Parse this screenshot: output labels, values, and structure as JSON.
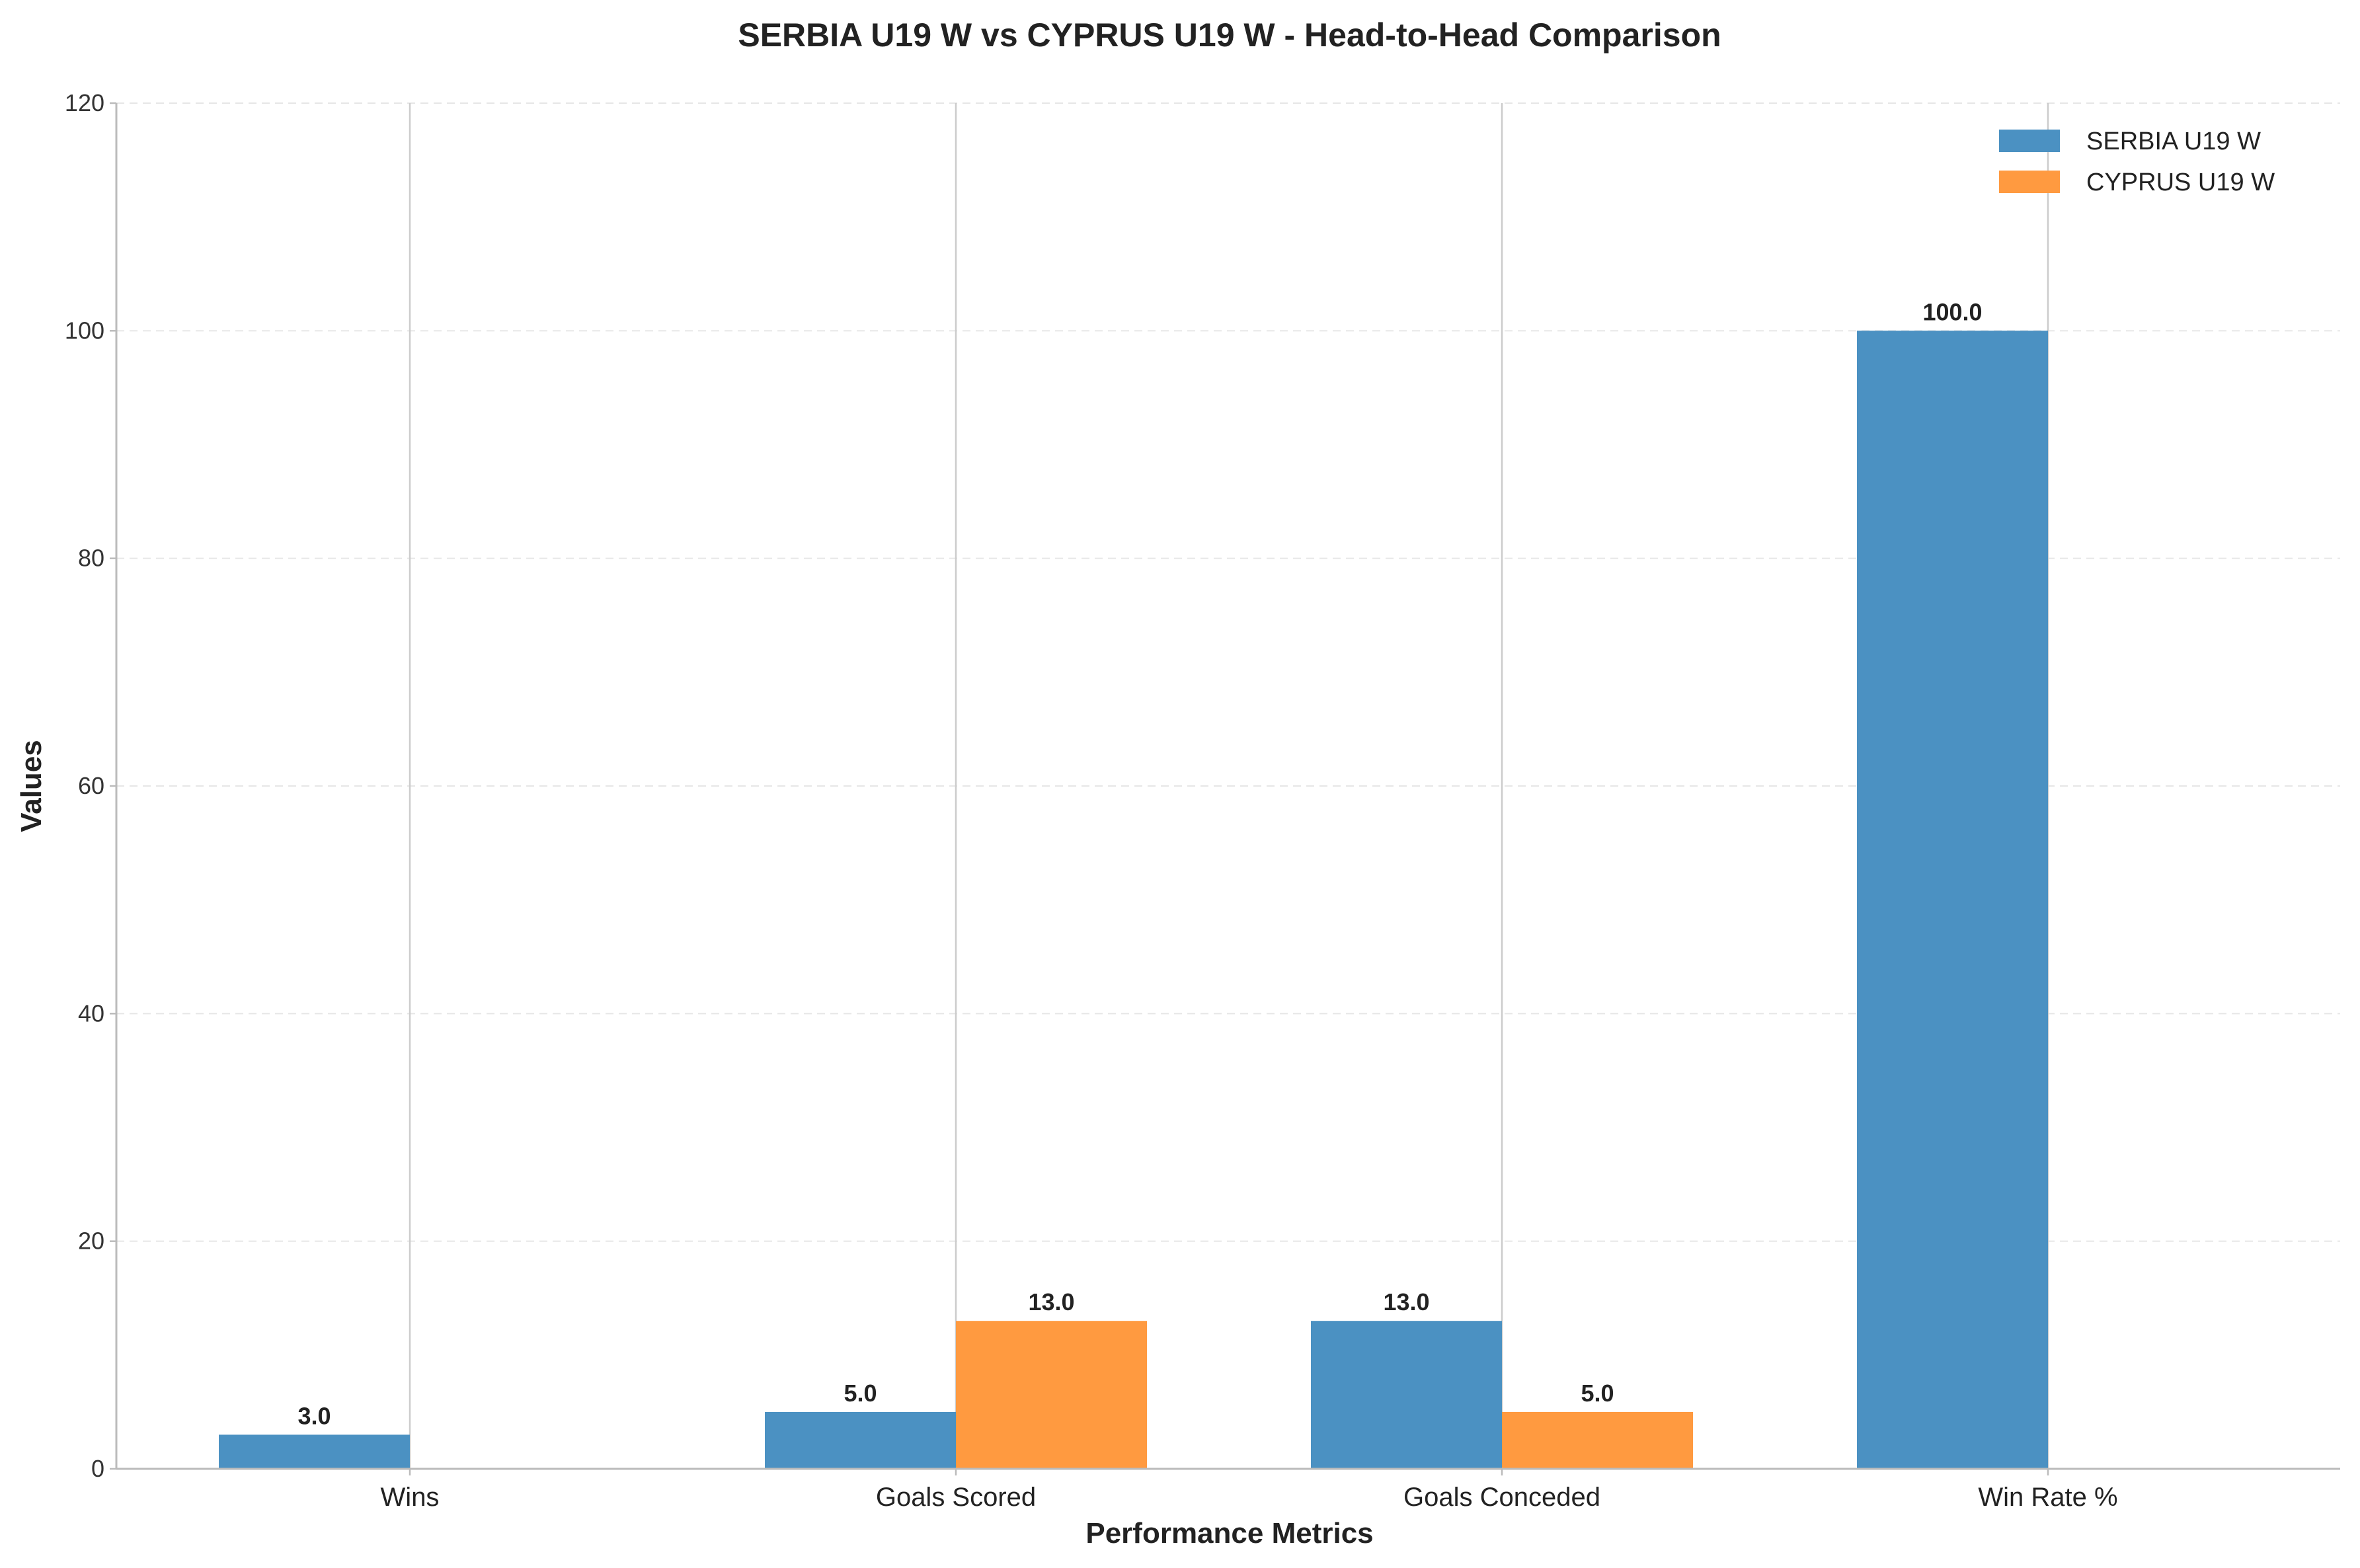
{
  "chart_data": {
    "type": "bar",
    "title": "SERBIA U19 W vs CYPRUS U19 W - Head-to-Head Comparison",
    "xlabel": "Performance Metrics",
    "ylabel": "Values",
    "categories": [
      "Wins",
      "Goals Scored",
      "Goals Conceded",
      "Win Rate %"
    ],
    "series": [
      {
        "name": "SERBIA U19 W",
        "color": "#4b91c2",
        "values": [
          3.0,
          5.0,
          13.0,
          100.0
        ]
      },
      {
        "name": "CYPRUS U19 W",
        "color": "#ff9a40",
        "values": [
          0.0,
          13.0,
          5.0,
          0.0
        ]
      }
    ],
    "ylim": [
      0,
      120
    ],
    "yticks": [
      0,
      20,
      40,
      60,
      80,
      100,
      120
    ],
    "grid": true,
    "legend_position": "top-right"
  }
}
